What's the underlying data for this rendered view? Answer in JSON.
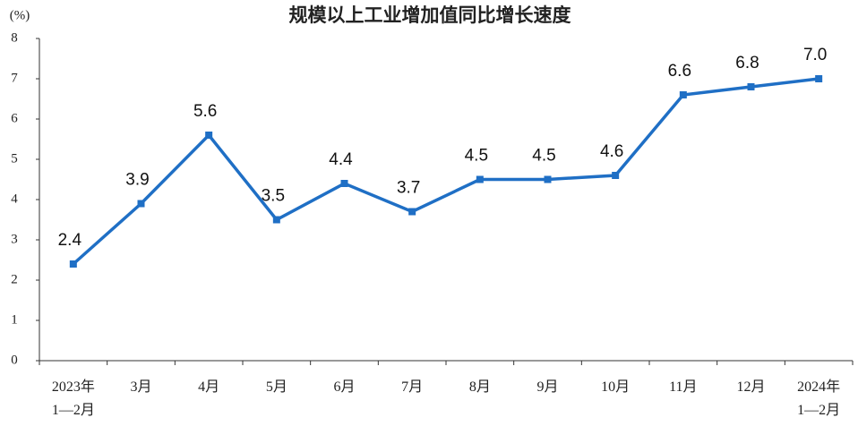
{
  "chart_data": {
    "type": "line",
    "title": "规模以上工业增加值同比增长速度",
    "y_label": "(%)",
    "categories": [
      "2023年\n1—2月",
      "3月",
      "4月",
      "5月",
      "6月",
      "7月",
      "8月",
      "9月",
      "10月",
      "11月",
      "12月",
      "2024年\n1—2月"
    ],
    "values": [
      2.4,
      3.9,
      5.6,
      3.5,
      4.4,
      3.7,
      4.5,
      4.5,
      4.6,
      6.6,
      6.8,
      7.0
    ],
    "value_labels": [
      "2.4",
      "3.9",
      "5.6",
      "3.5",
      "4.4",
      "3.7",
      "4.5",
      "4.5",
      "4.6",
      "6.6",
      "6.8",
      "7.0"
    ],
    "color": "#1f6fc5",
    "ylim": [
      0,
      8
    ],
    "yticks": [
      0,
      1,
      2,
      3,
      4,
      5,
      6,
      7,
      8
    ]
  }
}
